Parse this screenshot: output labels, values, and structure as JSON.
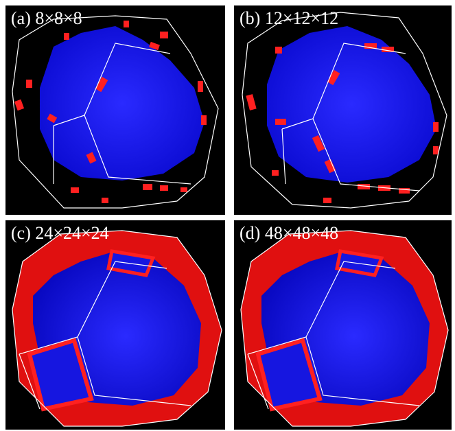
{
  "panels": [
    {
      "id": "a",
      "label": "(a) 8×8×8"
    },
    {
      "id": "b",
      "label": "(b) 12×12×12"
    },
    {
      "id": "c",
      "label": "(c) 24×24×24"
    },
    {
      "id": "d",
      "label": "(d) 48×48×48"
    }
  ],
  "colors": {
    "background": "#000000",
    "surface_inner": "#1a1aff",
    "surface_outer": "#ff1a1a",
    "edges": "#ffffff",
    "label": "#ffffff"
  }
}
